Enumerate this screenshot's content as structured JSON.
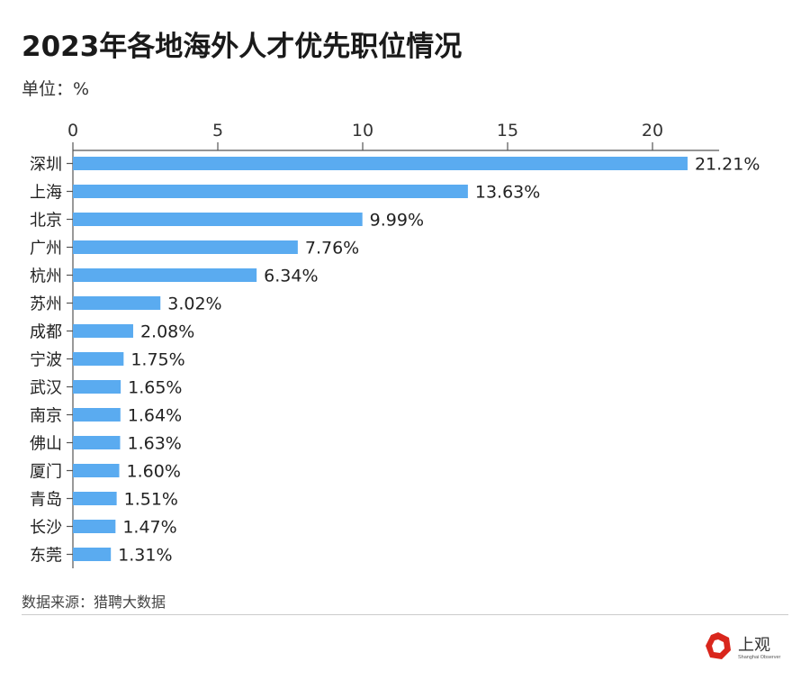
{
  "title": "2023年各地海外人才优先职位情况",
  "unit": "单位：%",
  "source": "数据来源：猎聘大数据",
  "logo": {
    "text": "上观",
    "subtext": "Shanghai Observer",
    "color": "#d9261c"
  },
  "chart_data": {
    "type": "bar",
    "orientation": "horizontal",
    "title": "2023年各地海外人才优先职位情况",
    "xlabel": "",
    "ylabel": "",
    "xlim": [
      0,
      22.3
    ],
    "xticks": [
      0,
      5,
      10,
      15,
      20
    ],
    "tick_labels": [
      "0",
      "5",
      "10",
      "15",
      "20"
    ],
    "categories": [
      "深圳",
      "上海",
      "北京",
      "广州",
      "杭州",
      "苏州",
      "成都",
      "宁波",
      "武汉",
      "南京",
      "佛山",
      "厦门",
      "青岛",
      "长沙",
      "东莞"
    ],
    "values": [
      21.21,
      13.63,
      9.99,
      7.76,
      6.34,
      3.02,
      2.08,
      1.75,
      1.65,
      1.64,
      1.63,
      1.6,
      1.51,
      1.47,
      1.31
    ],
    "data_labels": [
      "21.21%",
      "13.63%",
      "9.99%",
      "7.76%",
      "6.34%",
      "3.02%",
      "2.08%",
      "1.75%",
      "1.65%",
      "1.64%",
      "1.63%",
      "1.60%",
      "1.51%",
      "1.47%",
      "1.31%"
    ],
    "bar_color": "#5aabf0",
    "grid": false,
    "axis_position": "top"
  }
}
